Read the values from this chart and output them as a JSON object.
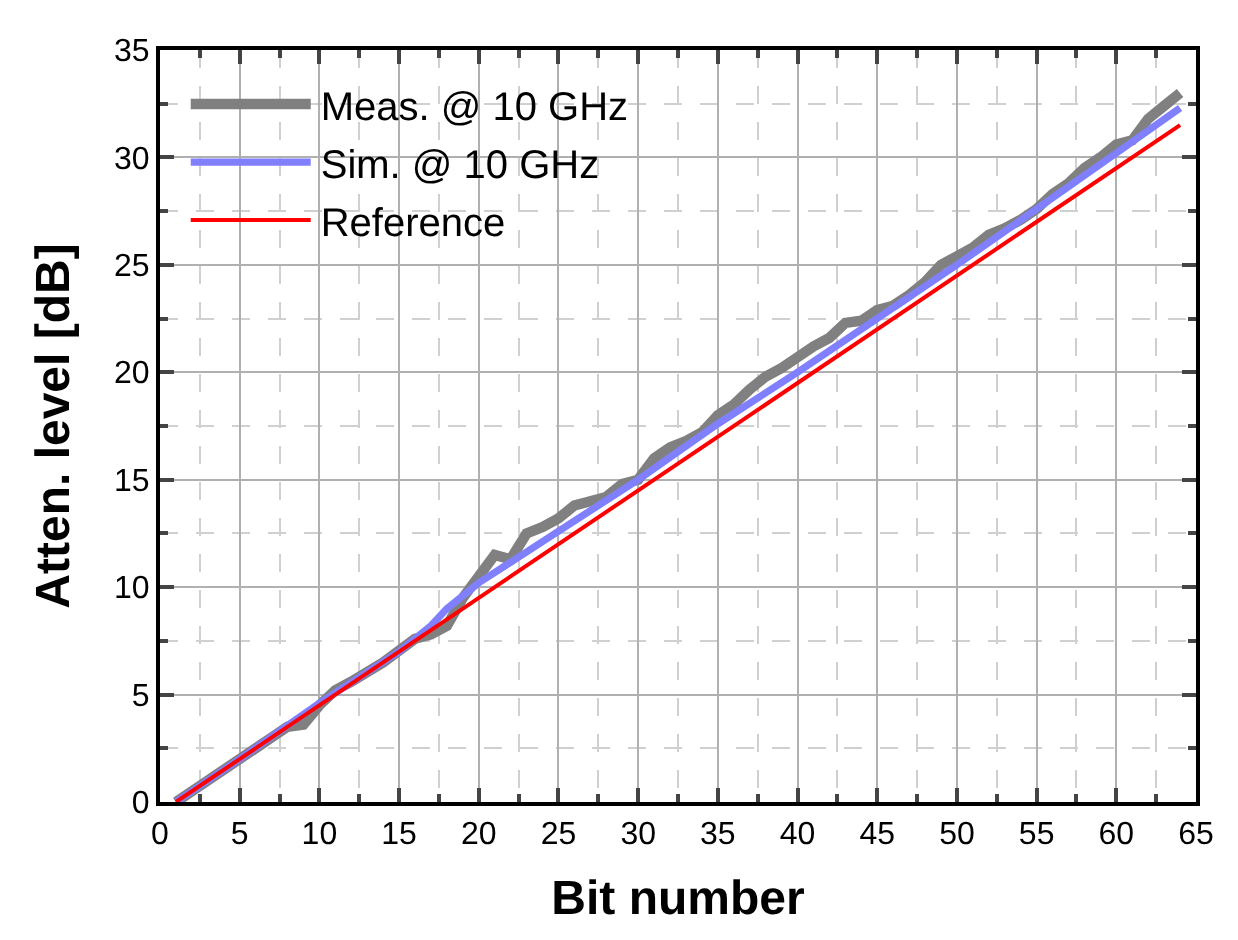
{
  "chart_data": {
    "type": "line",
    "xlabel": "Bit number",
    "ylabel": "Atten. level [dB]",
    "xlim": [
      0,
      65
    ],
    "xticks": [
      0,
      5,
      10,
      15,
      20,
      25,
      30,
      35,
      40,
      45,
      50,
      55,
      60,
      65
    ],
    "ylim": [
      0,
      35
    ],
    "yticks": [
      0,
      5,
      10,
      15,
      20,
      25,
      30,
      35
    ],
    "grid": true,
    "legend": "top left",
    "marker": "none",
    "line_style": "solid",
    "series": [
      {
        "name": "Meas. @ 10 GHz",
        "color": "#808080",
        "x": [
          1,
          3,
          5,
          7,
          8,
          9,
          10,
          11,
          12,
          14,
          16,
          17,
          18,
          19,
          20,
          21,
          22,
          23,
          24,
          25,
          26,
          27,
          28,
          29,
          30,
          31,
          32,
          33,
          34,
          35,
          36,
          37,
          38,
          39,
          40,
          41,
          42,
          43,
          44,
          45,
          46,
          47,
          48,
          49,
          50,
          51,
          52,
          53,
          54,
          55,
          56,
          57,
          58,
          59,
          60,
          61,
          62,
          63,
          64
        ],
        "values": [
          0,
          1,
          2,
          3,
          3.5,
          3.6,
          4.5,
          5.2,
          5.6,
          6.5,
          7.6,
          7.8,
          8.2,
          9.5,
          10.5,
          11.5,
          11.3,
          12.5,
          12.8,
          13.2,
          13.8,
          14,
          14.2,
          14.8,
          15,
          16,
          16.5,
          16.8,
          17.2,
          18,
          18.5,
          19.2,
          19.8,
          20.2,
          20.7,
          21.2,
          21.6,
          22.3,
          22.4,
          22.9,
          23.1,
          23.6,
          24.2,
          25,
          25.4,
          25.8,
          26.4,
          26.7,
          27.1,
          27.6,
          28.3,
          28.8,
          29.5,
          30,
          30.6,
          30.8,
          31.8,
          32.4,
          33
        ]
      },
      {
        "name": "Sim. @ 10 GHz",
        "color": "#8080ff",
        "x": [
          1,
          5,
          10,
          15,
          17,
          18,
          20,
          25,
          30,
          35,
          40,
          45,
          50,
          55,
          60,
          64
        ],
        "values": [
          0,
          2,
          4.6,
          7,
          8.2,
          9,
          10.2,
          12.6,
          15,
          17.6,
          20,
          22.5,
          25,
          27.6,
          30.2,
          32.3
        ]
      },
      {
        "name": "Reference",
        "color": "#ff0000",
        "x": [
          1,
          64
        ],
        "values": [
          0,
          31.5
        ]
      }
    ]
  }
}
